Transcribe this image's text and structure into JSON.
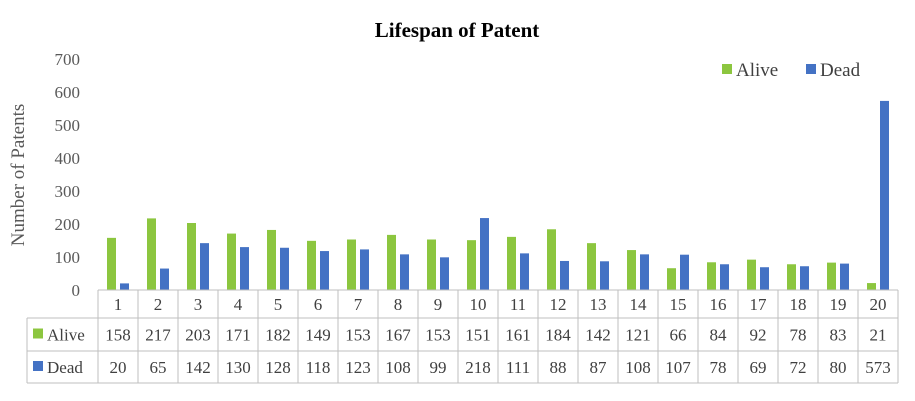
{
  "chart_data": {
    "type": "bar",
    "title": "Lifespan of Patent",
    "xlabel": "",
    "ylabel": "Number of Patents",
    "ylim": [
      0,
      700
    ],
    "yticks": [
      0,
      100,
      200,
      300,
      400,
      500,
      600,
      700
    ],
    "grid": false,
    "legend_position": "top-right",
    "data_table": true,
    "categories": [
      "1",
      "2",
      "3",
      "4",
      "5",
      "6",
      "7",
      "8",
      "9",
      "10",
      "11",
      "12",
      "13",
      "14",
      "15",
      "16",
      "17",
      "18",
      "19",
      "20"
    ],
    "series": [
      {
        "name": "Alive",
        "color": "#8CC63F",
        "values": [
          158,
          217,
          203,
          171,
          182,
          149,
          153,
          167,
          153,
          151,
          161,
          184,
          142,
          121,
          66,
          84,
          92,
          78,
          83,
          21
        ]
      },
      {
        "name": "Dead",
        "color": "#4472C4",
        "values": [
          20,
          65,
          142,
          130,
          128,
          118,
          123,
          108,
          99,
          218,
          111,
          88,
          87,
          108,
          107,
          78,
          69,
          72,
          80,
          573
        ]
      }
    ]
  }
}
